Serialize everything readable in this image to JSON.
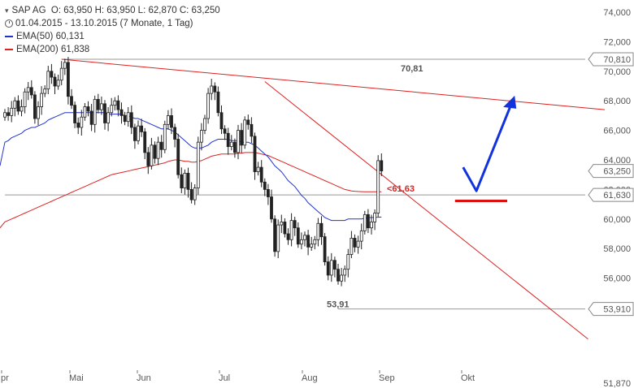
{
  "legend": {
    "symbol": "SAP AG",
    "ohlc": "O: 63,950  H: 63,950  L: 62,870  C: 63,250",
    "period": "01.04.2015 - 13.10.2015 (7 Monate, 1 Tag)",
    "ema50_label": "EMA(50)",
    "ema50_value": "60,131",
    "ema200_label": "EMA(200)",
    "ema200_value": "61,838"
  },
  "colors": {
    "ema50": "#2233cc",
    "ema200": "#dd2222",
    "trend": "#dd2222",
    "arrow": "#1133dd",
    "candle": "#222222",
    "grid": "#999999"
  },
  "chart_data": {
    "type": "candlestick",
    "ylim": [
      51.87,
      74.0
    ],
    "y_ticks": [
      "74,000",
      "72,000",
      "70,000",
      "68,000",
      "66,000",
      "64,000",
      "62,000",
      "60,000",
      "58,000",
      "56,000",
      "51,870"
    ],
    "y_tick_values": [
      74,
      72,
      70,
      68,
      66,
      64,
      62,
      60,
      58,
      56,
      51.87
    ],
    "x_labels": [
      "pr",
      "Mai",
      "Jun",
      "Jul",
      "Aug",
      "Sep",
      "Okt"
    ],
    "price_boxes": [
      {
        "label": "70,810",
        "value": 70.81
      },
      {
        "label": "63,250",
        "value": 63.25
      },
      {
        "label": "61,630",
        "value": 61.63
      },
      {
        "label": "53,910",
        "value": 53.91
      }
    ],
    "annotations": [
      {
        "label": "70,81",
        "value": 70.81
      },
      {
        "label": "<61,63",
        "value": 61.63
      },
      {
        "label": "53,91",
        "value": 53.91
      }
    ],
    "close": [
      67.2,
      67.0,
      67.5,
      68.0,
      67.3,
      67.6,
      68.6,
      68.9,
      68.4,
      66.8,
      67.6,
      68.5,
      68.8,
      70.0,
      69.6,
      69.0,
      69.4,
      70.2,
      70.6,
      68.3,
      67.7,
      66.5,
      66.2,
      66.9,
      67.6,
      67.3,
      66.4,
      68.1,
      67.4,
      67.8,
      66.5,
      67.2,
      67.7,
      68.0,
      67.4,
      67.0,
      66.6,
      67.2,
      66.2,
      65.3,
      66.3,
      65.9,
      64.5,
      63.6,
      65.0,
      64.1,
      65.2,
      64.7,
      66.4,
      67.0,
      66.2,
      65.4,
      63.0,
      62.1,
      63.1,
      62.0,
      61.3,
      62.1,
      65.2,
      66.0,
      66.8,
      68.5,
      69.0,
      68.6,
      67.2,
      66.1,
      65.8,
      64.9,
      65.2,
      64.5,
      66.0,
      65.0,
      66.7,
      66.4,
      65.6,
      63.2,
      63.5,
      62.5,
      62.0,
      61.5,
      60.0,
      57.8,
      59.6,
      59.8,
      59.0,
      58.6,
      59.9,
      59.4,
      58.3,
      58.6,
      58.9,
      58.1,
      58.3,
      58.6,
      59.7,
      58.8,
      57.1,
      56.2,
      57.2,
      56.6,
      55.8,
      56.2,
      56.6,
      57.6,
      58.7,
      58.1,
      58.5,
      59.2,
      60.3,
      59.4,
      59.8,
      60.4,
      63.95,
      63.25
    ],
    "ema50": [
      65.2,
      65.3,
      65.5,
      65.6,
      65.7,
      65.8,
      66.0,
      66.1,
      66.2,
      66.2,
      66.3,
      66.4,
      66.5,
      66.7,
      66.8,
      66.9,
      67.0,
      67.1,
      67.2,
      67.2,
      67.2,
      67.2,
      67.2,
      67.2,
      67.2,
      67.2,
      67.2,
      67.2,
      67.2,
      67.2,
      67.2,
      67.1,
      67.1,
      67.1,
      67.1,
      67.1,
      67.0,
      67.0,
      66.9,
      66.8,
      66.8,
      66.7,
      66.6,
      66.5,
      66.4,
      66.3,
      66.2,
      66.1,
      66.1,
      66.1,
      66.0,
      65.9,
      65.7,
      65.5,
      65.3,
      65.1,
      64.9,
      64.8,
      64.8,
      64.8,
      64.9,
      65.0,
      65.2,
      65.3,
      65.4,
      65.4,
      65.4,
      65.4,
      65.3,
      65.3,
      65.3,
      65.2,
      65.2,
      65.2,
      65.1,
      65.0,
      64.8,
      64.6,
      64.4,
      64.2,
      63.9,
      63.6,
      63.4,
      63.2,
      62.9,
      62.6,
      62.4,
      62.2,
      61.9,
      61.6,
      61.4,
      61.1,
      60.9,
      60.7,
      60.5,
      60.3,
      60.1,
      60.0,
      59.9,
      59.9,
      59.9,
      59.9,
      59.9,
      60.0,
      60.0,
      60.0,
      60.0,
      60.0,
      60.05,
      60.08,
      60.1,
      60.11,
      60.12,
      60.13
    ],
    "ema200": [
      59.8,
      59.9,
      60.0,
      60.1,
      60.2,
      60.3,
      60.4,
      60.5,
      60.6,
      60.7,
      60.8,
      60.9,
      61.0,
      61.1,
      61.2,
      61.3,
      61.4,
      61.5,
      61.6,
      61.7,
      61.8,
      61.9,
      62.0,
      62.1,
      62.2,
      62.3,
      62.4,
      62.5,
      62.6,
      62.7,
      62.8,
      62.9,
      63.0,
      63.05,
      63.1,
      63.15,
      63.2,
      63.25,
      63.3,
      63.35,
      63.4,
      63.45,
      63.5,
      63.55,
      63.6,
      63.65,
      63.7,
      63.75,
      63.8,
      63.9,
      63.95,
      64.0,
      64.0,
      63.95,
      63.9,
      63.9,
      63.85,
      63.85,
      63.9,
      63.95,
      64.05,
      64.15,
      64.25,
      64.3,
      64.35,
      64.4,
      64.4,
      64.4,
      64.4,
      64.4,
      64.45,
      64.45,
      64.5,
      64.5,
      64.5,
      64.5,
      64.45,
      64.4,
      64.35,
      64.3,
      64.2,
      64.1,
      64.0,
      63.9,
      63.8,
      63.7,
      63.6,
      63.5,
      63.4,
      63.3,
      63.2,
      63.1,
      63.0,
      62.9,
      62.8,
      62.7,
      62.6,
      62.5,
      62.4,
      62.3,
      62.2,
      62.1,
      62.0,
      61.95,
      61.9,
      61.88,
      61.86,
      61.85,
      61.84,
      61.84,
      61.838,
      61.838,
      61.838,
      61.838
    ],
    "trendlines": [
      {
        "name": "upper",
        "from": {
          "bar": 17,
          "value": 70.81
        },
        "to": {
          "bar": 180,
          "value": 67.4
        }
      },
      {
        "name": "lower",
        "from": {
          "bar": 78,
          "value": 69.3
        },
        "to": {
          "bar": 175,
          "value": 51.87
        }
      }
    ],
    "horizontal_lines": [
      {
        "value": 70.81,
        "from_bar": 17
      },
      {
        "value": 61.63,
        "from_bar": 0
      },
      {
        "value": 53.91,
        "from_bar": 100
      }
    ],
    "forecast_arrow": [
      {
        "bar": 137.5,
        "value": 63.5
      },
      {
        "bar": 141.5,
        "value": 61.9
      },
      {
        "bar": 152,
        "value": 67.8
      }
    ],
    "support_marker": {
      "value": 61.5,
      "from_bar": 138,
      "to_bar": 150
    }
  }
}
